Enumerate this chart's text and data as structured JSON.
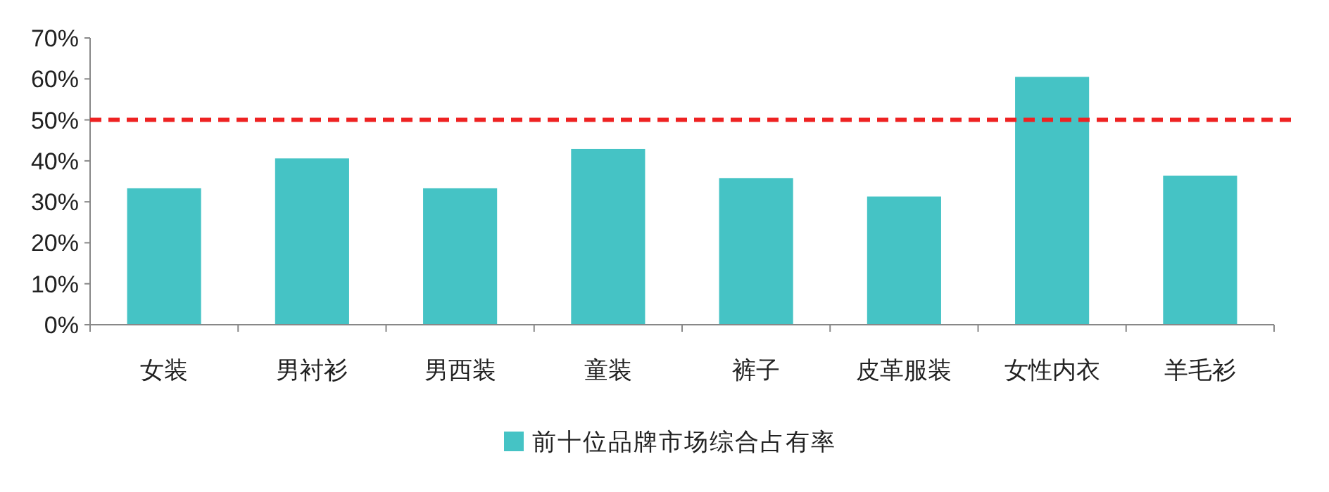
{
  "chart_data": {
    "type": "bar",
    "categories": [
      "女装",
      "男衬衫",
      "男西装",
      "童装",
      "裤子",
      "皮革服装",
      "女性内衣",
      "羊毛衫"
    ],
    "series": [
      {
        "name": "前十位品牌市场综合占有率",
        "color": "#45c3c5",
        "values": [
          33.3,
          40.6,
          33.3,
          42.9,
          35.8,
          31.3,
          60.5,
          36.4
        ]
      }
    ],
    "ylim": [
      0,
      70
    ],
    "yticks": [
      {
        "value": 0,
        "label": "0%"
      },
      {
        "value": 10,
        "label": "10%"
      },
      {
        "value": 20,
        "label": "20%"
      },
      {
        "value": 30,
        "label": "30%"
      },
      {
        "value": 40,
        "label": "40%"
      },
      {
        "value": 50,
        "label": "50%"
      },
      {
        "value": 60,
        "label": "60%"
      },
      {
        "value": 70,
        "label": "70%"
      }
    ],
    "ref_lines": [
      {
        "axis": "y",
        "value": 50,
        "color": "#ee2222",
        "line_style": "dashed"
      }
    ],
    "grid": false,
    "legend": "bottom"
  }
}
